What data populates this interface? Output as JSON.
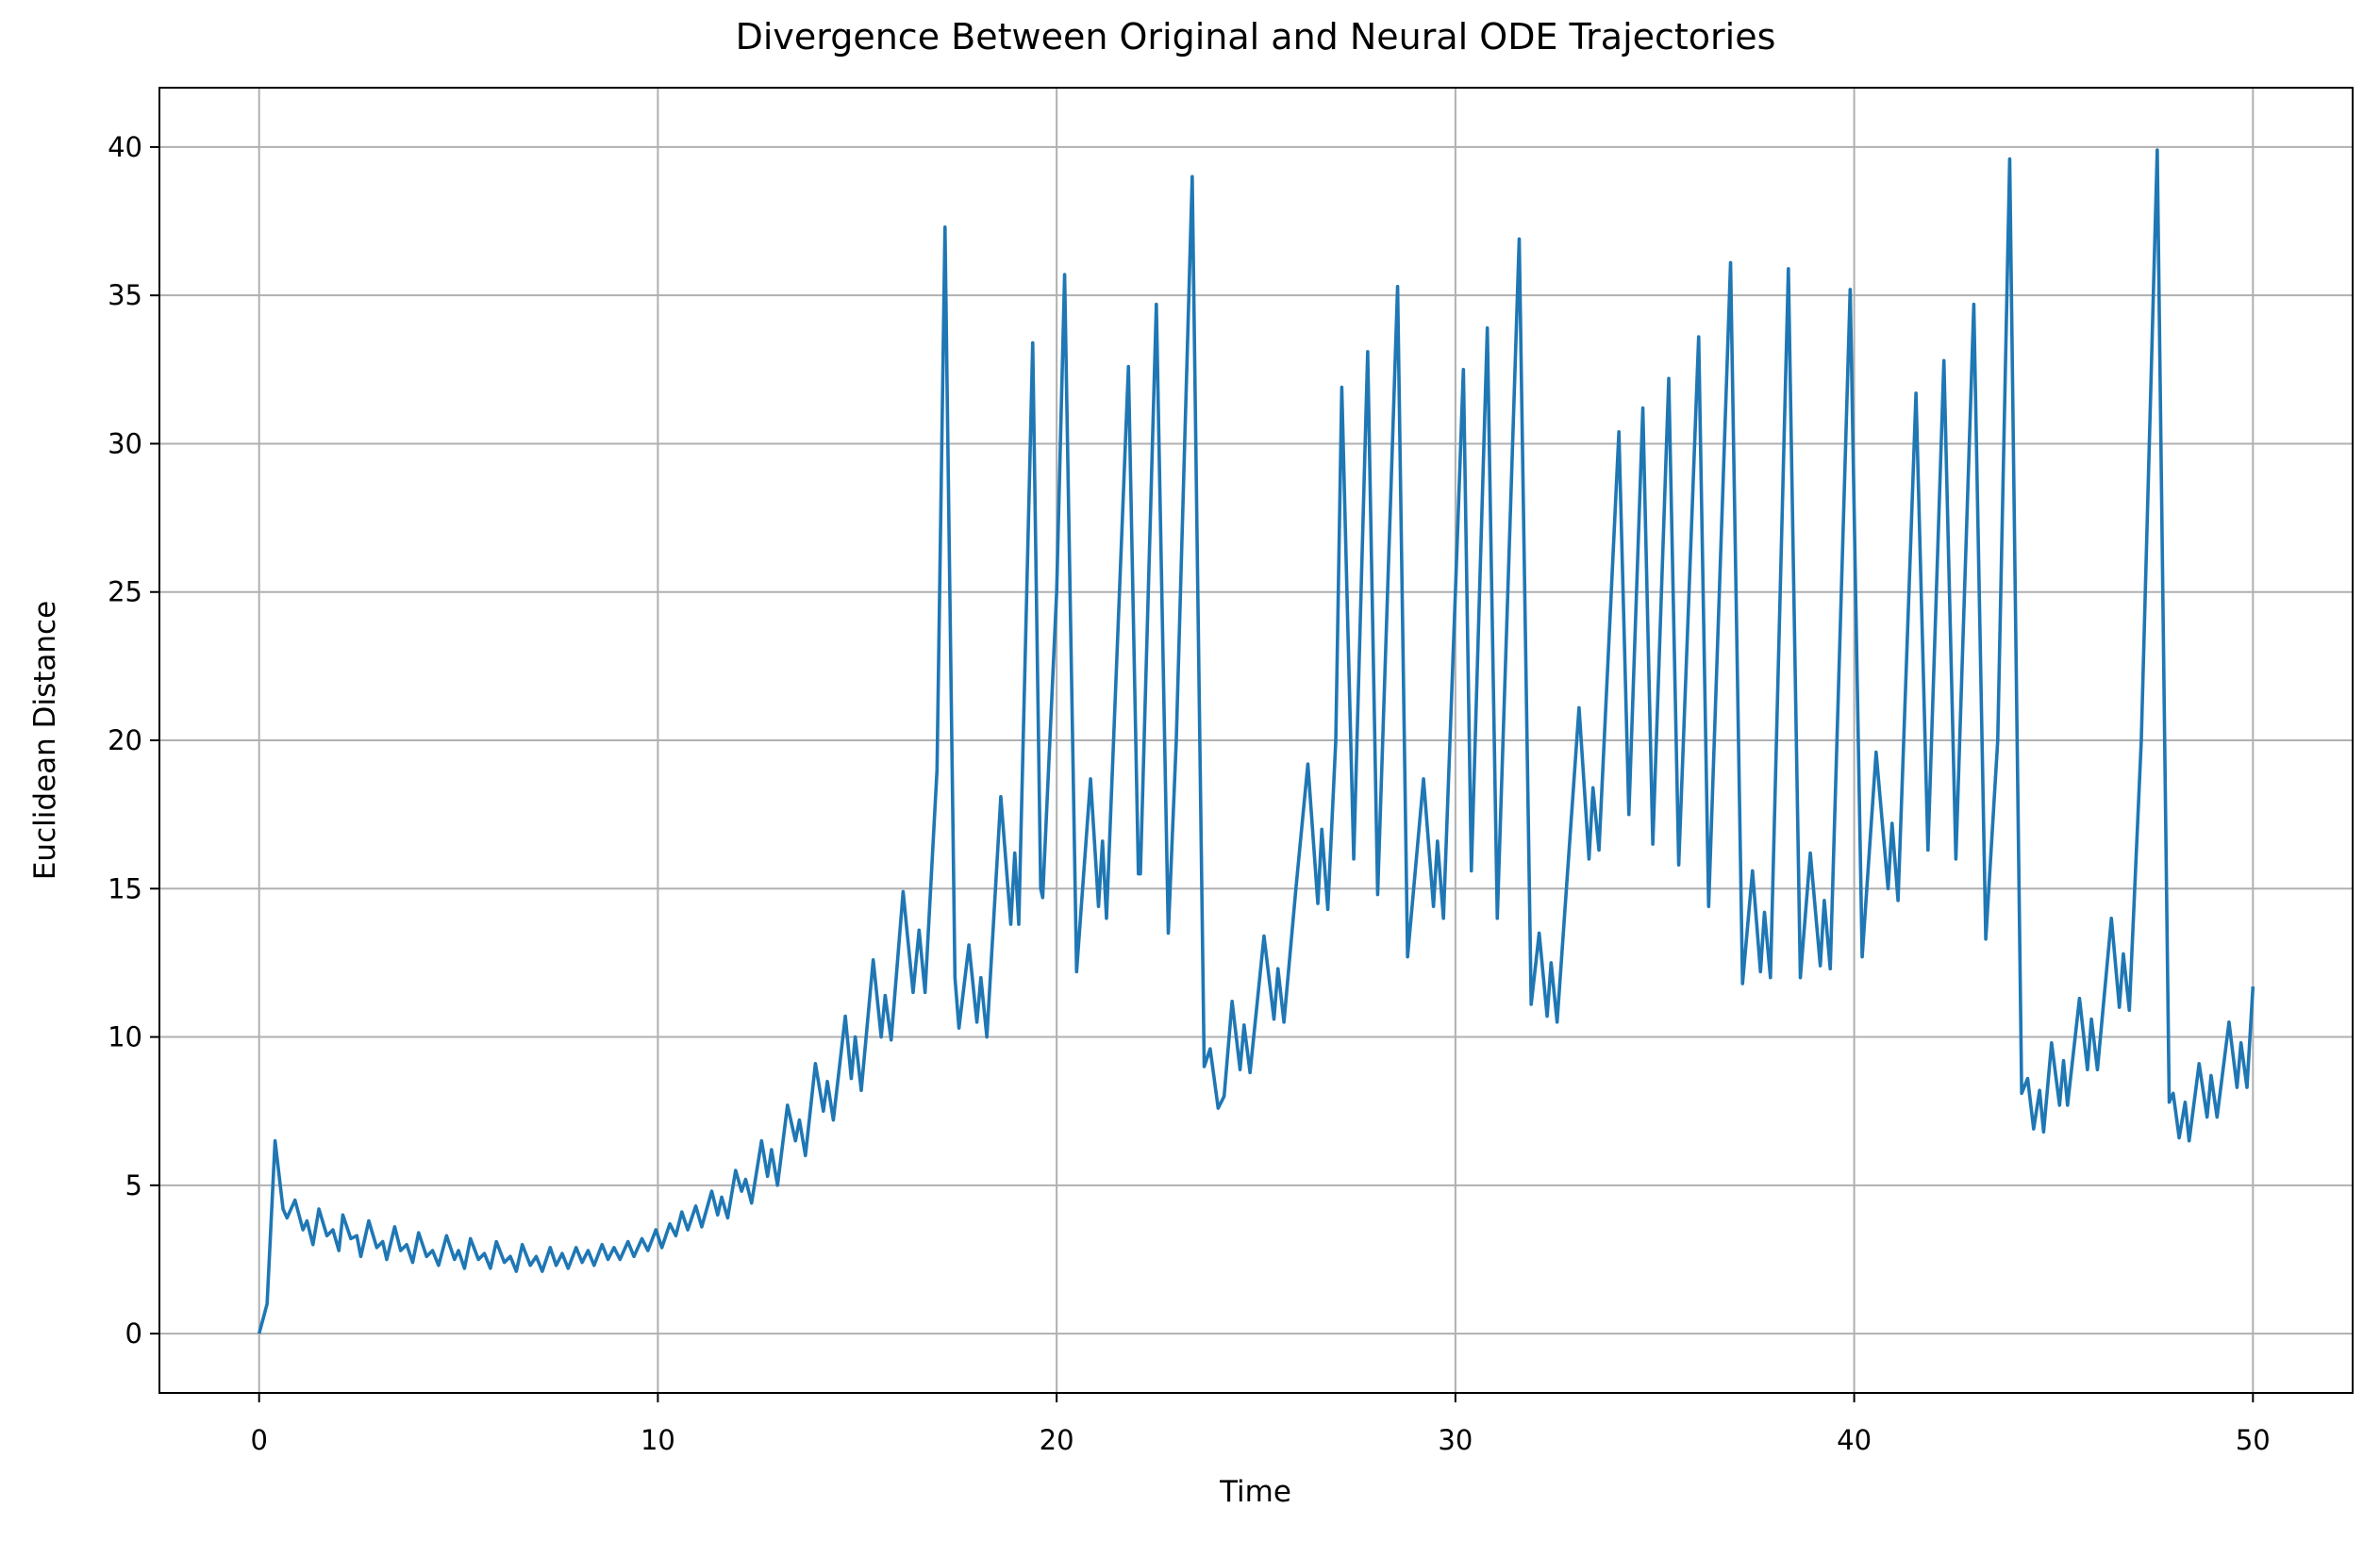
{
  "chart_data": {
    "type": "line",
    "title": "Divergence Between Original and Neural ODE Trajectories",
    "xlabel": "Time",
    "ylabel": "Euclidean Distance",
    "xlim": [
      -2.5,
      52.5
    ],
    "ylim": [
      -2,
      42
    ],
    "xticks": [
      0,
      10,
      20,
      30,
      40,
      50
    ],
    "yticks": [
      0,
      5,
      10,
      15,
      20,
      25,
      30,
      35,
      40
    ],
    "grid": true,
    "x": [
      0,
      0.2,
      0.4,
      0.6,
      0.7,
      0.9,
      1.1,
      1.2,
      1.35,
      1.5,
      1.7,
      1.85,
      2.0,
      2.1,
      2.3,
      2.45,
      2.55,
      2.75,
      2.95,
      3.1,
      3.2,
      3.4,
      3.55,
      3.7,
      3.85,
      4.0,
      4.2,
      4.35,
      4.5,
      4.7,
      4.9,
      5.0,
      5.15,
      5.3,
      5.5,
      5.65,
      5.8,
      5.95,
      6.15,
      6.3,
      6.45,
      6.6,
      6.8,
      6.95,
      7.1,
      7.3,
      7.45,
      7.6,
      7.75,
      7.95,
      8.1,
      8.25,
      8.4,
      8.6,
      8.75,
      8.9,
      9.05,
      9.25,
      9.4,
      9.6,
      9.75,
      9.95,
      10.1,
      10.3,
      10.45,
      10.6,
      10.75,
      10.95,
      11.1,
      11.35,
      11.5,
      11.6,
      11.75,
      11.95,
      12.1,
      12.2,
      12.35,
      12.6,
      12.75,
      12.85,
      13.0,
      13.25,
      13.45,
      13.55,
      13.7,
      13.95,
      14.15,
      14.25,
      14.4,
      14.7,
      14.85,
      14.95,
      15.1,
      15.4,
      15.6,
      15.7,
      15.85,
      16.15,
      16.4,
      16.55,
      16.7,
      17.0,
      17.2,
      17.45,
      17.55,
      17.8,
      18.0,
      18.1,
      18.25,
      18.6,
      18.85,
      18.95,
      19.05,
      19.4,
      19.6,
      19.65,
      20.0,
      20.2,
      20.5,
      20.85,
      21.05,
      21.15,
      21.25,
      21.8,
      22.05,
      22.1,
      22.5,
      22.8,
      23.0,
      23.4,
      23.7,
      23.85,
      24.05,
      24.2,
      24.4,
      24.6,
      24.7,
      24.85,
      25.2,
      25.45,
      25.55,
      25.7,
      26.0,
      26.3,
      26.55,
      26.65,
      26.8,
      27.0,
      27.15,
      27.45,
      27.8,
      28.05,
      28.55,
      28.8,
      29.2,
      29.45,
      29.55,
      29.7,
      30.0,
      30.2,
      30.4,
      30.8,
      31.05,
      31.6,
      31.9,
      32.1,
      32.3,
      32.4,
      32.55,
      33.1,
      33.35,
      33.45,
      33.6,
      34.1,
      34.35,
      34.7,
      34.95,
      35.35,
      35.6,
      36.1,
      36.35,
      36.9,
      37.2,
      37.45,
      37.65,
      37.75,
      37.9,
      38.35,
      38.65,
      38.9,
      39.15,
      39.25,
      39.4,
      39.9,
      40.2,
      40.55,
      40.85,
      40.95,
      41.1,
      41.55,
      41.85,
      42.25,
      42.55,
      43.0,
      43.3,
      43.6,
      43.9,
      44.2,
      44.35,
      44.5,
      44.65,
      44.75,
      44.95,
      45.15,
      45.25,
      45.35,
      45.65,
      45.85,
      45.95,
      46.1,
      46.45,
      46.65,
      46.75,
      46.9,
      47.2,
      47.6,
      47.9,
      48.0,
      48.15,
      48.3,
      48.4,
      48.65,
      48.85,
      48.95,
      49.1,
      49.4,
      49.6,
      49.7,
      49.85,
      50.0
    ],
    "series": [
      {
        "color": "#1f77b4",
        "values": [
          0,
          1,
          6.5,
          4.2,
          3.9,
          4.5,
          3.5,
          3.8,
          3.0,
          4.2,
          3.3,
          3.5,
          2.8,
          4.0,
          3.2,
          3.3,
          2.6,
          3.8,
          2.9,
          3.1,
          2.5,
          3.6,
          2.8,
          3.0,
          2.4,
          3.4,
          2.6,
          2.8,
          2.3,
          3.3,
          2.5,
          2.8,
          2.2,
          3.2,
          2.5,
          2.7,
          2.2,
          3.1,
          2.4,
          2.6,
          2.1,
          3.0,
          2.3,
          2.6,
          2.1,
          2.9,
          2.3,
          2.7,
          2.2,
          2.9,
          2.4,
          2.8,
          2.3,
          3.0,
          2.5,
          2.9,
          2.5,
          3.1,
          2.6,
          3.2,
          2.8,
          3.5,
          2.9,
          3.7,
          3.3,
          4.1,
          3.5,
          4.3,
          3.6,
          4.8,
          4.0,
          4.6,
          3.9,
          5.5,
          4.8,
          5.2,
          4.4,
          6.5,
          5.3,
          6.2,
          5.0,
          7.7,
          6.5,
          7.2,
          6.0,
          9.1,
          7.5,
          8.5,
          7.2,
          10.7,
          8.6,
          10.0,
          8.2,
          12.6,
          10.0,
          11.4,
          9.9,
          14.9,
          11.5,
          13.6,
          11.5,
          19,
          37.3,
          12,
          10.3,
          13.1,
          10.5,
          12.0,
          10.0,
          18.1,
          13.8,
          16.2,
          13.8,
          33.4,
          15,
          14.7,
          25,
          35.7,
          12.2,
          18.7,
          14.4,
          16.6,
          14.0,
          32.6,
          15.5,
          15.5,
          34.7,
          13.5,
          20,
          39,
          9,
          9.6,
          7.6,
          8,
          11.2,
          8.9,
          10.4,
          8.8,
          13.4,
          10.6,
          12.3,
          10.5,
          15,
          19.2,
          14.5,
          17.0,
          14.3,
          20,
          31.9,
          16.0,
          33.1,
          14.8,
          35.3,
          12.7,
          18.7,
          14.4,
          16.6,
          14.0,
          25,
          32.5,
          15.6,
          33.9,
          14.0,
          36.9,
          11.1,
          13.5,
          10.7,
          12.5,
          10.5,
          21.1,
          16.0,
          18.4,
          16.3,
          30.4,
          17.5,
          31.2,
          16.5,
          32.2,
          15.8,
          33.6,
          14.4,
          36.1,
          11.8,
          15.6,
          12.2,
          14.2,
          12.0,
          35.9,
          12.0,
          16.2,
          12.4,
          14.6,
          12.3,
          35.2,
          12.7,
          19.6,
          15.0,
          17.2,
          14.6,
          31.7,
          16.3,
          32.8,
          16.0,
          34.7,
          13.3,
          20,
          39.6,
          8.1,
          8.6,
          6.9,
          8.2,
          6.8,
          9.8,
          7.7,
          9.2,
          7.7,
          11.3,
          8.9,
          10.6,
          8.9,
          14,
          11,
          12.8,
          10.9,
          20,
          39.9,
          7.8,
          8.1,
          6.6,
          7.8,
          6.5,
          9.1,
          7.3,
          8.7,
          7.3,
          10.5,
          8.3,
          9.8,
          8.3,
          11.7
        ]
      }
    ]
  }
}
